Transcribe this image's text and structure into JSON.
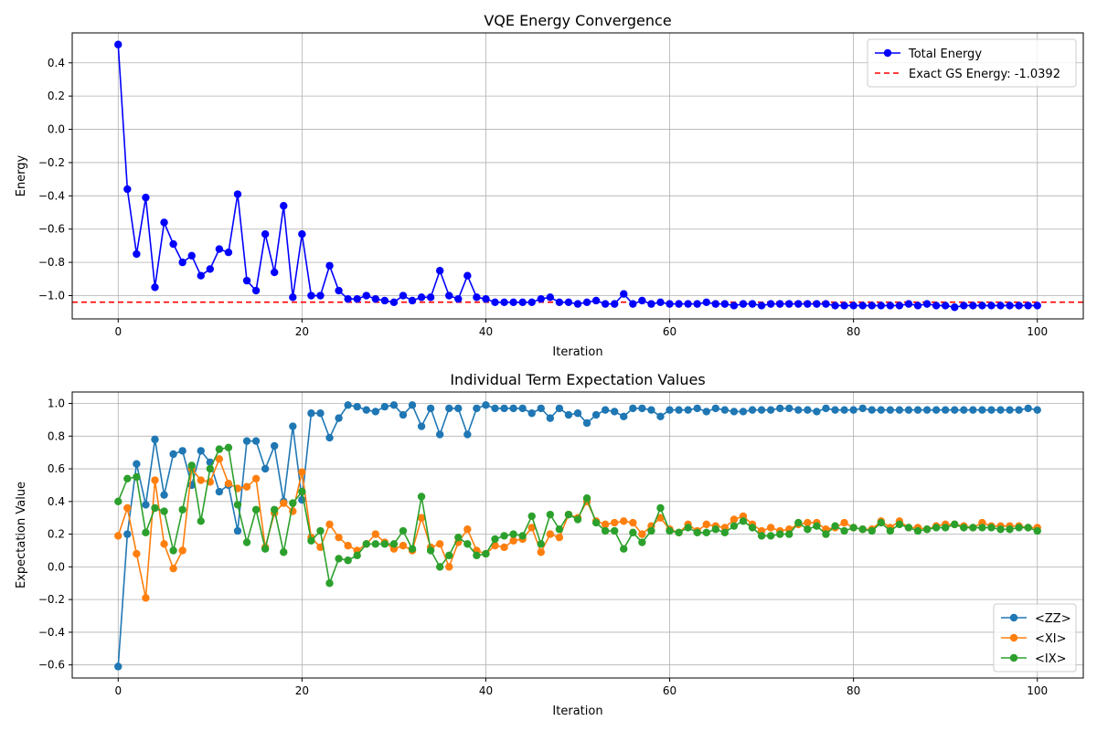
{
  "chart_data": [
    {
      "type": "line",
      "title": "VQE Energy Convergence",
      "xlabel": "Iteration",
      "ylabel": "Energy",
      "xlim": [
        -5,
        105
      ],
      "ylim": [
        -1.14,
        0.58
      ],
      "xticks": [
        0,
        20,
        40,
        60,
        80,
        100
      ],
      "yticks": [
        -1.0,
        -0.8,
        -0.6,
        -0.4,
        -0.2,
        0.0,
        0.2,
        0.4
      ],
      "ytick_decimals": 1,
      "grid": true,
      "legend_position": "top-right",
      "series": [
        {
          "name": "Total Energy",
          "color": "#0000ff",
          "marker": "circle",
          "values": [
            0.51,
            -0.36,
            -0.75,
            -0.41,
            -0.95,
            -0.56,
            -0.69,
            -0.8,
            -0.76,
            -0.88,
            -0.84,
            -0.72,
            -0.74,
            -0.39,
            -0.91,
            -0.97,
            -0.63,
            -0.86,
            -0.46,
            -1.01,
            -0.63,
            -1.0,
            -1.0,
            -0.82,
            -0.97,
            -1.02,
            -1.02,
            -1.0,
            -1.02,
            -1.03,
            -1.04,
            -1.0,
            -1.03,
            -1.01,
            -1.01,
            -0.85,
            -1.0,
            -1.02,
            -0.88,
            -1.01,
            -1.02,
            -1.04,
            -1.04,
            -1.04,
            -1.04,
            -1.04,
            -1.02,
            -1.01,
            -1.04,
            -1.04,
            -1.05,
            -1.04,
            -1.03,
            -1.05,
            -1.05,
            -0.99,
            -1.05,
            -1.03,
            -1.05,
            -1.04,
            -1.05,
            -1.05,
            -1.05,
            -1.05,
            -1.04,
            -1.05,
            -1.05,
            -1.06,
            -1.05,
            -1.05,
            -1.06,
            -1.05,
            -1.05,
            -1.05,
            -1.05,
            -1.05,
            -1.05,
            -1.05,
            -1.06,
            -1.06,
            -1.06,
            -1.06,
            -1.06,
            -1.06,
            -1.06,
            -1.06,
            -1.05,
            -1.06,
            -1.05,
            -1.06,
            -1.06,
            -1.07,
            -1.06,
            -1.06,
            -1.06,
            -1.06,
            -1.06,
            -1.06,
            -1.06,
            -1.06,
            -1.06
          ]
        }
      ],
      "reference_line": {
        "name": "Exact GS Energy: -1.0392",
        "value": -1.0392,
        "color": "#ff0000",
        "style": "dashed"
      }
    },
    {
      "type": "line",
      "title": "Individual Term Expectation Values",
      "xlabel": "Iteration",
      "ylabel": "Expectation Value",
      "xlim": [
        -5,
        105
      ],
      "ylim": [
        -0.68,
        1.07
      ],
      "xticks": [
        0,
        20,
        40,
        60,
        80,
        100
      ],
      "yticks": [
        -0.6,
        -0.4,
        -0.2,
        0.0,
        0.2,
        0.4,
        0.6,
        0.8,
        1.0
      ],
      "ytick_decimals": 1,
      "grid": true,
      "legend_position": "bottom-right",
      "series": [
        {
          "name": "<ZZ>",
          "color": "#1f77b4",
          "marker": "circle",
          "values": [
            -0.61,
            0.2,
            0.63,
            0.38,
            0.78,
            0.44,
            0.69,
            0.71,
            0.5,
            0.71,
            0.64,
            0.46,
            0.5,
            0.22,
            0.77,
            0.77,
            0.6,
            0.74,
            0.4,
            0.86,
            0.41,
            0.94,
            0.94,
            0.79,
            0.91,
            0.99,
            0.98,
            0.96,
            0.95,
            0.98,
            0.99,
            0.93,
            0.99,
            0.86,
            0.97,
            0.81,
            0.97,
            0.97,
            0.81,
            0.97,
            0.99,
            0.97,
            0.97,
            0.97,
            0.97,
            0.94,
            0.97,
            0.91,
            0.97,
            0.93,
            0.94,
            0.88,
            0.93,
            0.96,
            0.95,
            0.92,
            0.97,
            0.97,
            0.96,
            0.92,
            0.96,
            0.96,
            0.96,
            0.97,
            0.95,
            0.97,
            0.96,
            0.95,
            0.95,
            0.96,
            0.96,
            0.96,
            0.97,
            0.97,
            0.96,
            0.96,
            0.95,
            0.97,
            0.96,
            0.96,
            0.96,
            0.97,
            0.96,
            0.96,
            0.96,
            0.96,
            0.96,
            0.96,
            0.96,
            0.96,
            0.96,
            0.96,
            0.96,
            0.96,
            0.96,
            0.96,
            0.96,
            0.96,
            0.96,
            0.97,
            0.96
          ]
        },
        {
          "name": "<XI>",
          "color": "#ff7f0e",
          "marker": "circle",
          "values": [
            0.19,
            0.36,
            0.08,
            -0.19,
            0.53,
            0.14,
            -0.01,
            0.1,
            0.6,
            0.53,
            0.52,
            0.66,
            0.51,
            0.48,
            0.49,
            0.54,
            0.12,
            0.33,
            0.39,
            0.34,
            0.58,
            0.18,
            0.12,
            0.26,
            0.18,
            0.13,
            0.1,
            0.14,
            0.2,
            0.15,
            0.11,
            0.13,
            0.1,
            0.3,
            0.12,
            0.14,
            0.0,
            0.15,
            0.23,
            0.1,
            0.08,
            0.13,
            0.12,
            0.16,
            0.17,
            0.24,
            0.09,
            0.2,
            0.18,
            0.32,
            0.3,
            0.4,
            0.28,
            0.26,
            0.27,
            0.28,
            0.27,
            0.2,
            0.25,
            0.3,
            0.23,
            0.21,
            0.26,
            0.22,
            0.26,
            0.25,
            0.24,
            0.29,
            0.31,
            0.26,
            0.22,
            0.24,
            0.22,
            0.23,
            0.26,
            0.27,
            0.27,
            0.23,
            0.24,
            0.27,
            0.24,
            0.23,
            0.23,
            0.28,
            0.24,
            0.28,
            0.24,
            0.24,
            0.23,
            0.25,
            0.26,
            0.26,
            0.25,
            0.24,
            0.27,
            0.25,
            0.25,
            0.25,
            0.25,
            0.24,
            0.24
          ]
        },
        {
          "name": "<IX>",
          "color": "#2ca02c",
          "marker": "circle",
          "values": [
            0.4,
            0.54,
            0.55,
            0.21,
            0.36,
            0.34,
            0.1,
            0.35,
            0.62,
            0.28,
            0.6,
            0.72,
            0.73,
            0.38,
            0.15,
            0.35,
            0.11,
            0.35,
            0.09,
            0.39,
            0.46,
            0.16,
            0.22,
            -0.1,
            0.05,
            0.04,
            0.07,
            0.14,
            0.14,
            0.14,
            0.14,
            0.22,
            0.11,
            0.43,
            0.1,
            0.0,
            0.07,
            0.18,
            0.14,
            0.07,
            0.08,
            0.17,
            0.19,
            0.2,
            0.19,
            0.31,
            0.14,
            0.32,
            0.23,
            0.32,
            0.29,
            0.42,
            0.27,
            0.22,
            0.22,
            0.11,
            0.21,
            0.15,
            0.22,
            0.36,
            0.22,
            0.21,
            0.24,
            0.21,
            0.21,
            0.23,
            0.21,
            0.25,
            0.28,
            0.24,
            0.19,
            0.19,
            0.2,
            0.2,
            0.27,
            0.23,
            0.25,
            0.2,
            0.25,
            0.22,
            0.24,
            0.23,
            0.22,
            0.27,
            0.22,
            0.26,
            0.24,
            0.22,
            0.23,
            0.24,
            0.24,
            0.26,
            0.24,
            0.24,
            0.24,
            0.24,
            0.23,
            0.23,
            0.24,
            0.24,
            0.22
          ]
        }
      ]
    }
  ]
}
